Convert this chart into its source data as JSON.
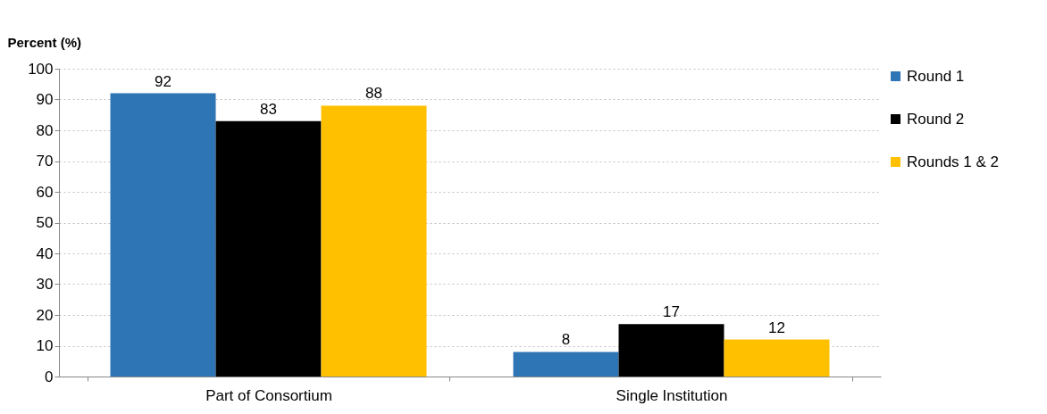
{
  "chart_data": {
    "type": "bar",
    "ylabel": "Percent (%)",
    "categories": [
      "Part of Consortium",
      "Single Institution"
    ],
    "series": [
      {
        "name": "Round 1",
        "color": "#2e75b6",
        "values": [
          92,
          8
        ]
      },
      {
        "name": "Round 2",
        "color": "#000000",
        "values": [
          83,
          17
        ]
      },
      {
        "name": "Rounds 1 & 2",
        "color": "#ffc000",
        "values": [
          88,
          12
        ]
      }
    ],
    "ylim": [
      0,
      100
    ],
    "yticks": [
      0,
      10,
      20,
      30,
      40,
      50,
      60,
      70,
      80,
      90,
      100
    ],
    "grid": "y",
    "legend": "right",
    "data_labels": true
  }
}
